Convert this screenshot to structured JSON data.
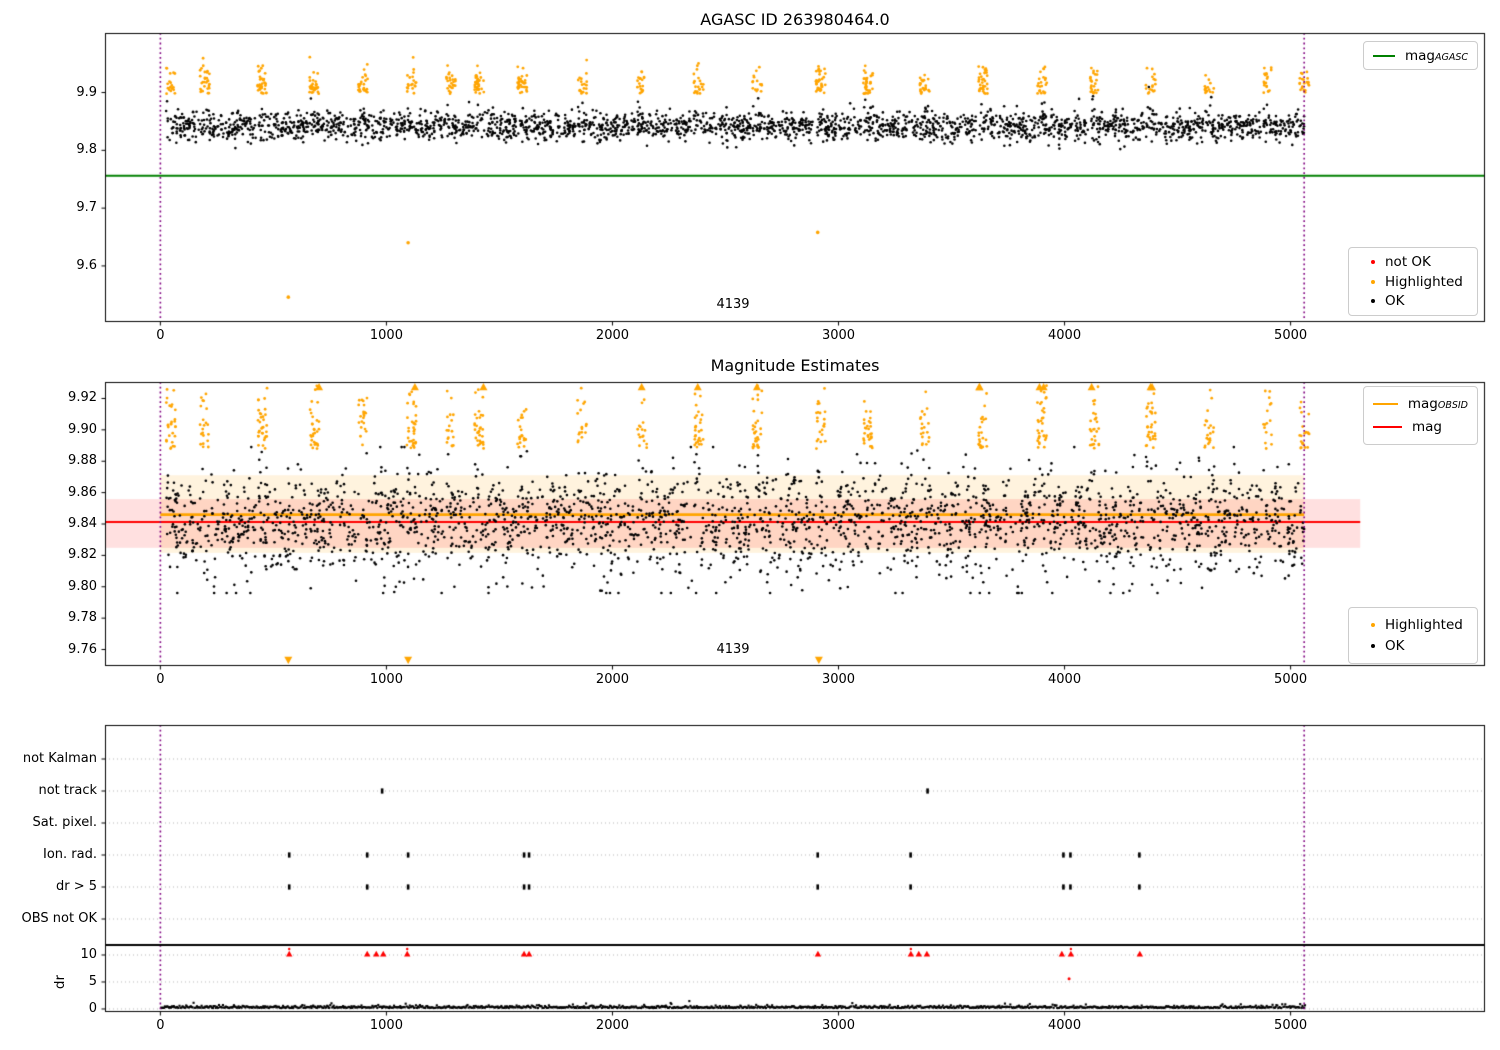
{
  "colors": {
    "ok": "#000000",
    "highlighted": "#FFA500",
    "not_ok": "#FF0000",
    "mag_agasc_line": "#008000",
    "mag_obsid_line": "#FFA500",
    "mag_line": "#FF0000",
    "obsid_vline": "#800080",
    "grid": "#b4b4b4",
    "obsid_band": "rgba(255,165,0,0.13)",
    "mag_band": "rgba(255,0,0,0.12)"
  },
  "chart_data": [
    {
      "id": "mag_vs_time",
      "type": "scatter",
      "title": "AGASC ID 263980464.0",
      "xlim": [
        -245,
        5860
      ],
      "ylim": [
        9.503,
        10.003
      ],
      "xticks": [
        0,
        1000,
        2000,
        3000,
        4000,
        5000
      ],
      "yticks": [
        9.6,
        9.7,
        9.8,
        9.9
      ],
      "grid": false,
      "hlines": [
        {
          "name": "mag_agasc",
          "value": 9.756,
          "color": "#008000",
          "x_range": [
            -245,
            5860
          ],
          "lw": 2
        }
      ],
      "vlines": {
        "color": "#800080",
        "style": "dotted",
        "x": [
          0,
          5060
        ]
      },
      "annotation": {
        "text": "4139",
        "x": 2530,
        "y": 9.525
      },
      "legend_lines": {
        "position": "upper right",
        "items": [
          {
            "main": "mag",
            "sub": "AGASC",
            "color": "#008000"
          }
        ]
      },
      "legend_markers": {
        "position": "lower right",
        "items": [
          {
            "label": "not OK",
            "color": "#FF0000"
          },
          {
            "label": "Highlighted",
            "color": "#FFA500"
          },
          {
            "label": "OK",
            "color": "#000000"
          }
        ]
      },
      "series": {
        "seed": 42,
        "segments_x": [
          25,
          175,
          430,
          660,
          875,
          1090,
          1265,
          1390,
          1580,
          1845,
          2110,
          2360,
          2620,
          2900,
          3110,
          3360,
          3620,
          3880,
          4110,
          4360,
          4620,
          4880,
          5040
        ],
        "x_end": 5062,
        "ok": {
          "center": 9.841,
          "sd": 0.0125,
          "density_per_x": 0.52,
          "range": [
            9.79,
            9.915
          ]
        },
        "highlighted": {
          "per_segment": 24,
          "base": 9.898,
          "spread": 0.022,
          "max": 9.966,
          "streak_width": 42
        },
        "outliers_highlighted": [
          [
            566,
            9.546
          ],
          [
            1096,
            9.64
          ],
          [
            2908,
            9.658
          ]
        ]
      }
    },
    {
      "id": "magnitude_estimates",
      "type": "scatter",
      "title": "Magnitude Estimates",
      "xlim": [
        -245,
        5860
      ],
      "ylim": [
        9.7495,
        9.9305
      ],
      "xticks": [
        0,
        1000,
        2000,
        3000,
        4000,
        5000
      ],
      "yticks": [
        9.76,
        9.78,
        9.8,
        9.82,
        9.84,
        9.86,
        9.88,
        9.9,
        9.92
      ],
      "grid": false,
      "hlines": [
        {
          "name": "mag_obsid",
          "value": 9.846,
          "color": "#FFA500",
          "x_range": [
            0,
            5060
          ],
          "lw": 2.6
        },
        {
          "name": "mag",
          "value": 9.8413,
          "color": "#FF0000",
          "x_range": [
            -243,
            5308
          ],
          "lw": 2
        }
      ],
      "bands": [
        {
          "name": "mag_obsid_err",
          "y": [
            9.8216,
            9.8711
          ],
          "x_range": [
            0,
            5060
          ],
          "color": "rgba(255,165,0,0.13)"
        },
        {
          "name": "mag_err",
          "y": [
            9.8248,
            9.8559
          ],
          "x_range": [
            -243,
            5308
          ],
          "color": "rgba(255,0,0,0.12)"
        }
      ],
      "vlines": {
        "color": "#800080",
        "style": "dotted",
        "x": [
          0,
          5060
        ]
      },
      "annotation": {
        "text": "4139",
        "x": 2530,
        "y": 9.756
      },
      "legend_lines": {
        "position": "upper right",
        "items": [
          {
            "main": "mag",
            "sub": "OBSID",
            "color": "#FFA500"
          },
          {
            "main": "mag",
            "sub": "",
            "color": "#FF0000"
          }
        ]
      },
      "legend_markers": {
        "position": "lower right",
        "items": [
          {
            "label": "Highlighted",
            "color": "#FFA500"
          },
          {
            "label": "OK",
            "color": "#000000"
          }
        ]
      },
      "series": {
        "seed": 77,
        "ok": {
          "center": 9.8415,
          "sd": 0.016,
          "range": [
            9.796,
            9.889
          ]
        },
        "highlighted": {
          "base": 9.888,
          "spread": 0.02
        },
        "clip_top": {
          "y": 9.9285
        },
        "clip_bottom": {
          "y": 9.7545,
          "x": [
            566,
            1096,
            2913
          ]
        }
      }
    },
    {
      "id": "flags",
      "type": "scatter",
      "categories": [
        "not Kalman",
        "not track",
        "Sat. pixel.",
        "Ion. rad.",
        "dr > 5",
        "OBS not OK"
      ],
      "grid": true,
      "vlines": {
        "color": "#800080",
        "style": "dotted",
        "x": [
          0,
          5060
        ]
      },
      "marks": {
        "not Kalman": [],
        "not track": [
          981,
          3394
        ],
        "Sat. pixel.": [],
        "Ion. rad.": [
          570,
          915,
          1096,
          1609,
          1631,
          2908,
          3319,
          3995,
          4026,
          4331
        ],
        "dr > 5": [
          570,
          915,
          1096,
          1609,
          1631,
          2908,
          3319,
          3995,
          4026,
          4331
        ],
        "OBS not OK": []
      }
    },
    {
      "id": "dr",
      "type": "scatter",
      "ylabel": "dr",
      "xlim": [
        -245,
        5860
      ],
      "ylim": [
        -0.56,
        11.85
      ],
      "xticks": [
        0,
        1000,
        2000,
        3000,
        4000,
        5000
      ],
      "yticks": [
        0,
        5,
        10
      ],
      "grid": true,
      "vlines": {
        "color": "#800080",
        "style": "dotted",
        "x": [
          0,
          5060
        ]
      },
      "clipped_top_red": {
        "y": 10,
        "x": [
          570,
          915,
          955,
          986,
          1092,
          1609,
          1631,
          2909,
          3320,
          3355,
          3391,
          3988,
          4028,
          4333
        ]
      },
      "red_points": [
        [
          4020,
          5.6
        ]
      ],
      "series": {
        "seed": 9,
        "ok": {
          "base": 0.18,
          "spread": 0.45,
          "step": 4.2,
          "x_start": 0,
          "x_end": 5062
        }
      }
    }
  ]
}
